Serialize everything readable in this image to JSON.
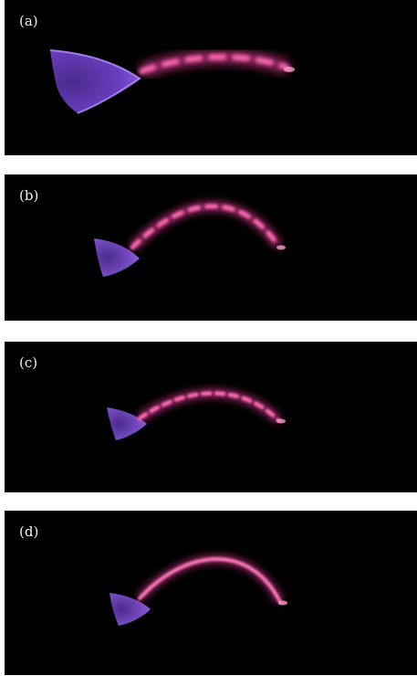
{
  "figure": {
    "panels": [
      {
        "label": "(a)"
      },
      {
        "label": "(b)"
      },
      {
        "label": "(c)"
      },
      {
        "label": "(d)"
      }
    ]
  },
  "colors": {
    "background": "#000000",
    "plasma": "#ff5ab4",
    "plasma_core": "#ffc8e8",
    "electrode": "#7a3ad8",
    "label": "#f2f2f2"
  }
}
